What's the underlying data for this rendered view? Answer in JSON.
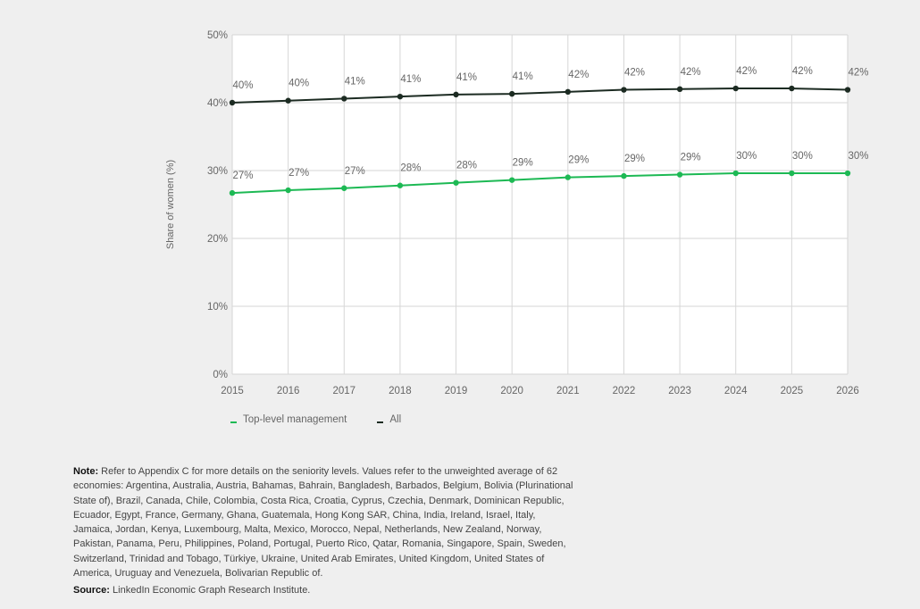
{
  "chart_data": {
    "type": "line",
    "title": "",
    "xlabel": "",
    "ylabel": "Share of women (%)",
    "ylim": [
      0,
      50
    ],
    "y_ticks": [
      0,
      10,
      20,
      30,
      40,
      50
    ],
    "y_tick_labels": [
      "0%",
      "10%",
      "20%",
      "30%",
      "40%",
      "50%"
    ],
    "x": [
      "2015",
      "2016",
      "2017",
      "2018",
      "2019",
      "2020",
      "2021",
      "2022",
      "2023",
      "2024",
      "2025",
      "2026"
    ],
    "grid": true,
    "legend_position": "bottom-left",
    "series": [
      {
        "name": "All",
        "color": "#1c2b22",
        "values": [
          40.0,
          40.3,
          40.6,
          40.9,
          41.2,
          41.3,
          41.6,
          41.9,
          42.0,
          42.1,
          42.1,
          41.9
        ],
        "labels": [
          "40%",
          "40%",
          "41%",
          "41%",
          "41%",
          "41%",
          "42%",
          "42%",
          "42%",
          "42%",
          "42%",
          "42%"
        ]
      },
      {
        "name": "Top-level management",
        "color": "#1db954",
        "values": [
          26.7,
          27.1,
          27.4,
          27.8,
          28.2,
          28.6,
          29.0,
          29.2,
          29.4,
          29.6,
          29.6,
          29.6
        ],
        "labels": [
          "27%",
          "27%",
          "27%",
          "28%",
          "28%",
          "29%",
          "29%",
          "29%",
          "29%",
          "30%",
          "30%",
          "30%"
        ]
      }
    ]
  },
  "legend": {
    "items": [
      {
        "label": "Top-level management",
        "color": "#1db954"
      },
      {
        "label": "All",
        "color": "#1c2b22"
      }
    ]
  },
  "notes": {
    "note_label": "Note:",
    "note_text": " Refer to Appendix C for more details on the seniority levels. Values refer to the unweighted average of 62 economies: Argentina, Australia, Austria, Bahamas, Bahrain, Bangladesh, Barbados, Belgium, Bolivia (Plurinational State of), Brazil, Canada, Chile, Colombia, Costa Rica, Croatia, Cyprus, Czechia, Denmark, Dominican Republic, Ecuador, Egypt, France, Germany, Ghana, Guatemala, Hong Kong SAR, China, India, Ireland, Israel, Italy, Jamaica, Jordan, Kenya, Luxembourg, Malta, Mexico, Morocco, Nepal, Netherlands, New Zealand, Norway, Pakistan, Panama, Peru, Philippines, Poland, Portugal, Puerto Rico, Qatar, Romania, Singapore, Spain, Sweden, Switzerland, Trinidad and Tobago, Türkiye, Ukraine, United Arab Emirates, United Kingdom, United States of America, Uruguay and Venezuela, Bolivarian Republic of.",
    "source_label": "Source:",
    "source_text": " LinkedIn Economic Graph Research Institute."
  }
}
